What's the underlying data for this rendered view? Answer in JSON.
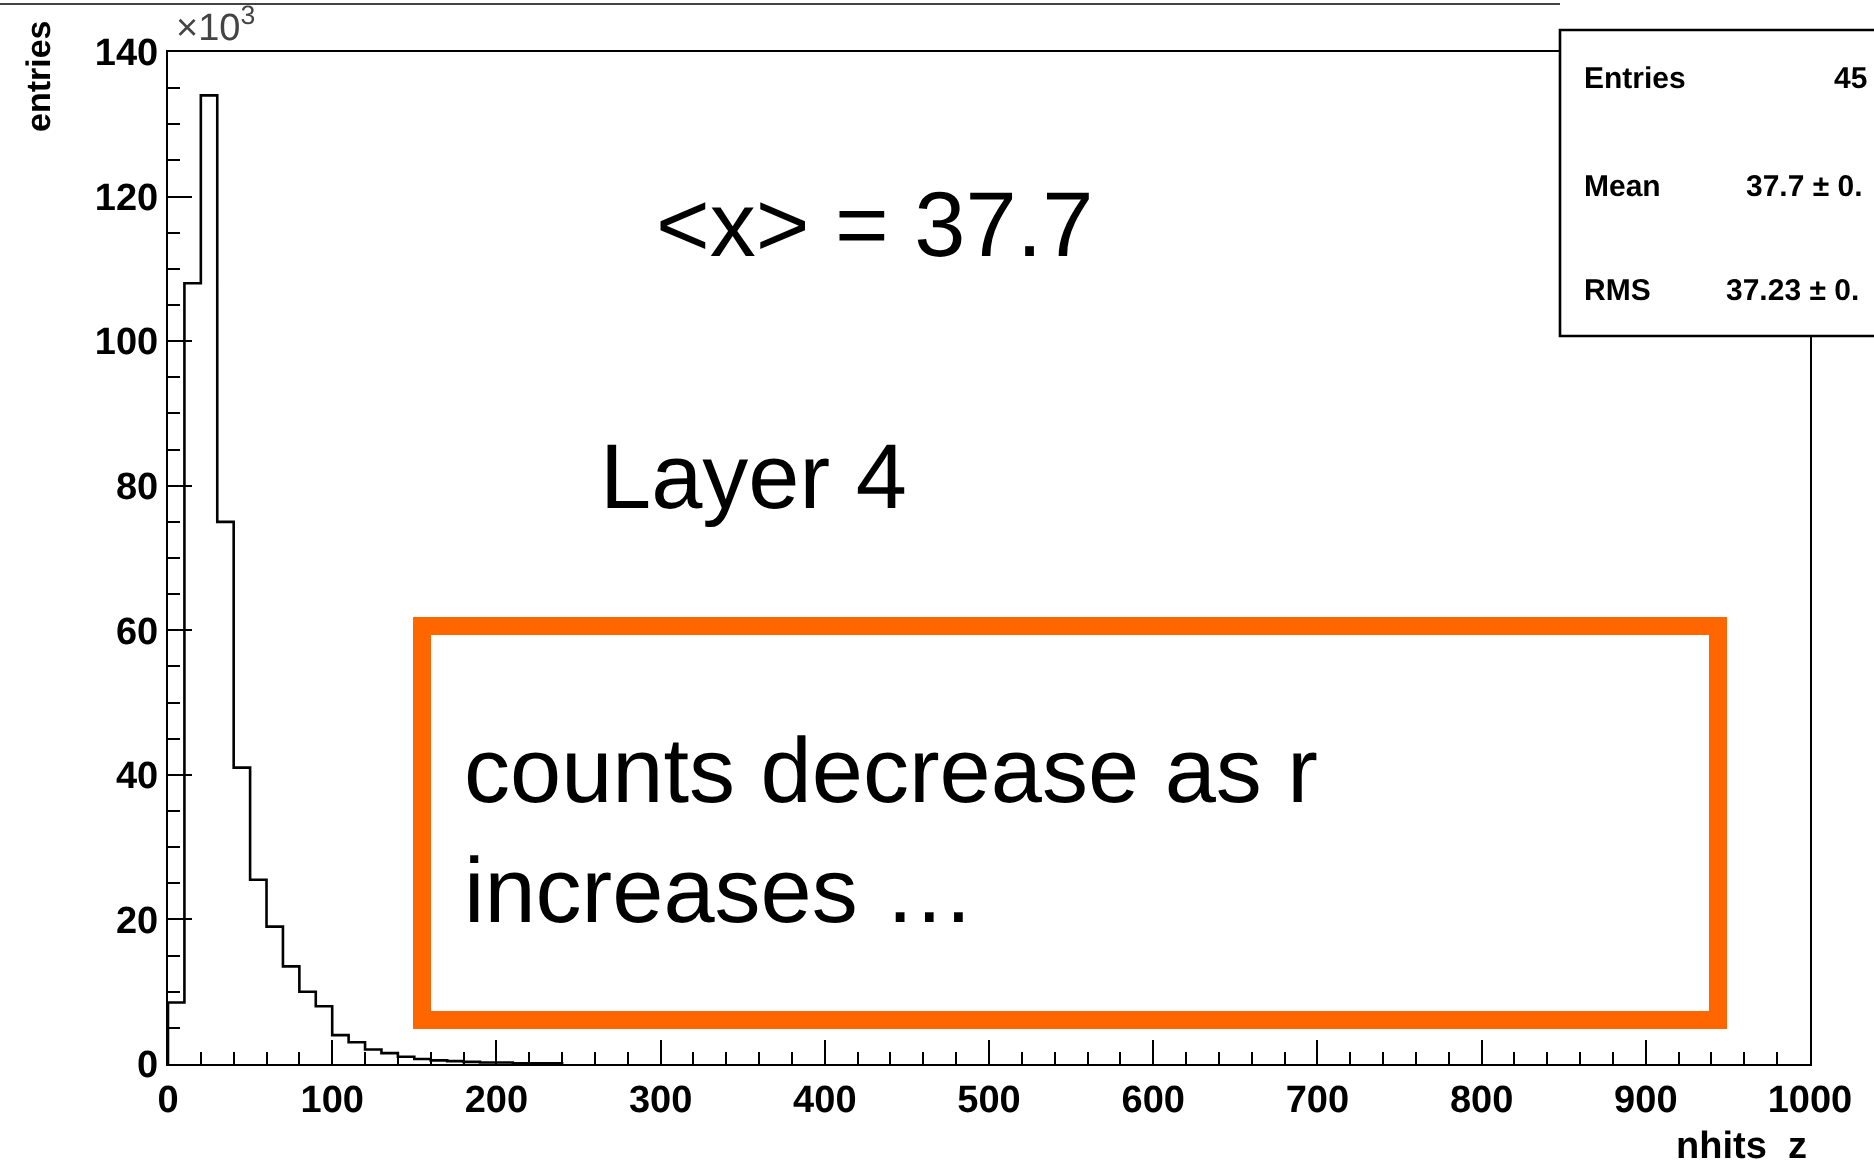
{
  "chart_data": {
    "type": "histogram",
    "xlabel": "nhits  z",
    "ylabel": "entries",
    "bins": [
      0,
      10,
      20,
      30,
      40,
      50,
      60,
      70,
      80,
      90,
      100,
      110,
      120,
      130,
      140,
      150,
      160,
      170,
      180,
      190,
      200,
      210,
      220,
      230,
      240
    ],
    "values": [
      8.5,
      108,
      134,
      75,
      41,
      25.5,
      19,
      13.5,
      10,
      8,
      4,
      3,
      2,
      1.5,
      1,
      0.7,
      0.5,
      0.4,
      0.3,
      0.2,
      0.2,
      0.1,
      0.1,
      0.1
    ],
    "color": "#000000",
    "xlim": [
      0,
      1000
    ],
    "xticks": [
      0,
      100,
      200,
      300,
      400,
      500,
      600,
      700,
      800,
      900,
      1000
    ],
    "ylim": [
      0,
      140
    ],
    "yticks": [
      0,
      20,
      40,
      60,
      80,
      100,
      120,
      140
    ],
    "annotations": [
      "×10$^{3}$",
      "<x> = 37.7",
      "Layer 4",
      "counts decrease as r increases …",
      "Entries",
      "45",
      "Mean",
      "37.7 ± 0.",
      "RMS",
      "37.23 ± 0."
    ]
  }
}
